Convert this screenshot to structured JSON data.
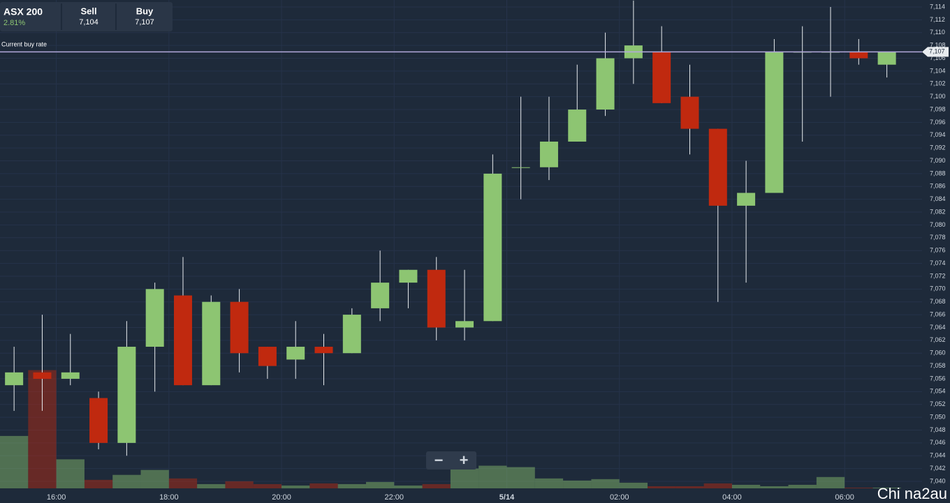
{
  "header": {
    "symbol": "ASX 200",
    "change": "2.81%",
    "sell_label": "Sell",
    "sell": "7,104",
    "buy_label": "Buy",
    "buy": "7,107"
  },
  "chart_data": {
    "type": "candlestick",
    "open": [
      7055,
      7057,
      7056,
      7053,
      7046,
      7061,
      7069,
      7055,
      7068,
      7061,
      7059,
      7061,
      7060,
      7067,
      7071,
      7073,
      7064,
      7065,
      7089,
      7089,
      7093,
      7098,
      7106,
      7107,
      7100,
      7095,
      7083,
      7085,
      7107,
      7107,
      7107,
      7105
    ],
    "high": [
      7061,
      7066,
      7063,
      7054,
      7065,
      7071,
      7075,
      7069,
      7070,
      7061,
      7065,
      7063,
      7067,
      7076,
      7073,
      7075,
      7073,
      7091,
      7100,
      7100,
      7105,
      7110,
      7115,
      7111,
      7105,
      7095,
      7090,
      7109,
      7111,
      7114,
      7109,
      7107
    ],
    "low": [
      7051,
      7051,
      7055,
      7045,
      7044,
      7054,
      7055,
      7055,
      7057,
      7056,
      7056,
      7055,
      7060,
      7065,
      7067,
      7062,
      7062,
      7065,
      7084,
      7087,
      7093,
      7097,
      7102,
      7099,
      7091,
      7068,
      7071,
      7085,
      7093,
      7100,
      7105,
      7103
    ],
    "close": [
      7057,
      7056,
      7057,
      7046,
      7061,
      7070,
      7055,
      7068,
      7060,
      7058,
      7061,
      7060,
      7066,
      7071,
      7073,
      7064,
      7065,
      7088,
      7089,
      7093,
      7098,
      7106,
      7108,
      7099,
      7095,
      7083,
      7085,
      7107,
      7107,
      7107,
      7106,
      7107
    ],
    "volume": [
      74,
      167,
      41,
      12,
      19,
      26,
      14,
      6,
      10,
      6,
      4,
      7,
      6,
      9,
      4,
      6,
      28,
      32,
      30,
      14,
      11,
      13,
      8,
      3,
      3,
      7,
      5,
      3,
      5,
      16,
      1,
      1
    ],
    "vlim": [
      0,
      680
    ],
    "up_color": "#8dc572",
    "down_color": "#c0290f",
    "ylim": [
      7040,
      7114
    ],
    "yticks": [
      {
        "value": 7040,
        "label": "7,040"
      },
      {
        "value": 7042,
        "label": "7,042"
      },
      {
        "value": 7044,
        "label": "7,044"
      },
      {
        "value": 7046,
        "label": "7,046"
      },
      {
        "value": 7048,
        "label": "7,048"
      },
      {
        "value": 7050,
        "label": "7,050"
      },
      {
        "value": 7052,
        "label": "7,052"
      },
      {
        "value": 7054,
        "label": "7,054"
      },
      {
        "value": 7056,
        "label": "7,056"
      },
      {
        "value": 7058,
        "label": "7,058"
      },
      {
        "value": 7060,
        "label": "7,060"
      },
      {
        "value": 7062,
        "label": "7,062"
      },
      {
        "value": 7064,
        "label": "7,064"
      },
      {
        "value": 7066,
        "label": "7,066"
      },
      {
        "value": 7068,
        "label": "7,068"
      },
      {
        "value": 7070,
        "label": "7,070"
      },
      {
        "value": 7072,
        "label": "7,072"
      },
      {
        "value": 7074,
        "label": "7,074"
      },
      {
        "value": 7076,
        "label": "7,076"
      },
      {
        "value": 7078,
        "label": "7,078"
      },
      {
        "value": 7080,
        "label": "7,080"
      },
      {
        "value": 7082,
        "label": "7,082"
      },
      {
        "value": 7084,
        "label": "7,084"
      },
      {
        "value": 7086,
        "label": "7,086"
      },
      {
        "value": 7088,
        "label": "7,088"
      },
      {
        "value": 7090,
        "label": "7,090"
      },
      {
        "value": 7092,
        "label": "7,092"
      },
      {
        "value": 7094,
        "label": "7,094"
      },
      {
        "value": 7096,
        "label": "7,096"
      },
      {
        "value": 7098,
        "label": "7,098"
      },
      {
        "value": 7100,
        "label": "7,100"
      },
      {
        "value": 7102,
        "label": "7,102"
      },
      {
        "value": 7104,
        "label": "7,104"
      },
      {
        "value": 7106,
        "label": "7,106"
      },
      {
        "value": 7108,
        "label": "7,108"
      },
      {
        "value": 7110,
        "label": "7,110"
      },
      {
        "value": 7112,
        "label": "7,112"
      },
      {
        "value": 7114,
        "label": "7,114"
      }
    ],
    "xlim": [
      -0.5,
      32.25
    ],
    "xticks": [
      {
        "value": 1.5,
        "label": "16:00"
      },
      {
        "value": 5.5,
        "label": "18:00"
      },
      {
        "value": 9.5,
        "label": "20:00"
      },
      {
        "value": 13.5,
        "label": "22:00"
      },
      {
        "value": 17.5,
        "label": "5/14"
      },
      {
        "value": 21.5,
        "label": "02:00"
      },
      {
        "value": 25.5,
        "label": "04:00"
      },
      {
        "value": 29.5,
        "label": "06:00"
      }
    ],
    "current_rate": {
      "label": "Current buy rate",
      "value": 7107,
      "tag": "7,107"
    },
    "grid": true
  },
  "zoom": {
    "minus": "−",
    "plus": "+"
  },
  "watermark": "Chi na2au"
}
